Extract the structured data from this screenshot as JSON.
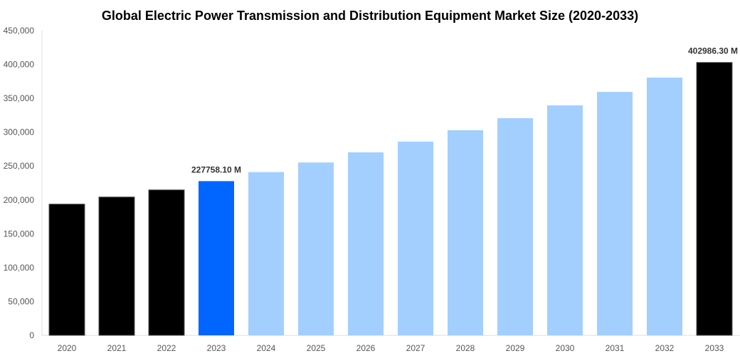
{
  "chart_data": {
    "type": "bar",
    "title": "Global Electric Power Transmission and Distribution Equipment Market Size (2020-2033)",
    "xlabel": "",
    "ylabel": "",
    "ylim": [
      0,
      450000
    ],
    "yticks": [
      "0",
      "50,000",
      "100,000",
      "150,000",
      "200,000",
      "250,000",
      "300,000",
      "350,000",
      "400,000",
      "450,000"
    ],
    "yticks_values": [
      0,
      50000,
      100000,
      150000,
      200000,
      250000,
      300000,
      350000,
      400000,
      450000
    ],
    "grid": false,
    "categories": [
      "2020",
      "2021",
      "2022",
      "2023",
      "2024",
      "2025",
      "2026",
      "2027",
      "2028",
      "2029",
      "2030",
      "2031",
      "2032",
      "2033"
    ],
    "values": [
      193800,
      204300,
      214800,
      227758.1,
      241100,
      255300,
      270300,
      286100,
      303000,
      320700,
      339600,
      359500,
      380600,
      402986.3
    ],
    "colors": [
      "#000000",
      "#000000",
      "#000000",
      "#0066ff",
      "#a3cfff",
      "#a3cfff",
      "#a3cfff",
      "#a3cfff",
      "#a3cfff",
      "#a3cfff",
      "#a3cfff",
      "#a3cfff",
      "#a3cfff",
      "#000000"
    ],
    "data_labels": [
      {
        "category": "2023",
        "text": "227758.10 M"
      },
      {
        "category": "2033",
        "text": "402986.30 M"
      }
    ]
  }
}
